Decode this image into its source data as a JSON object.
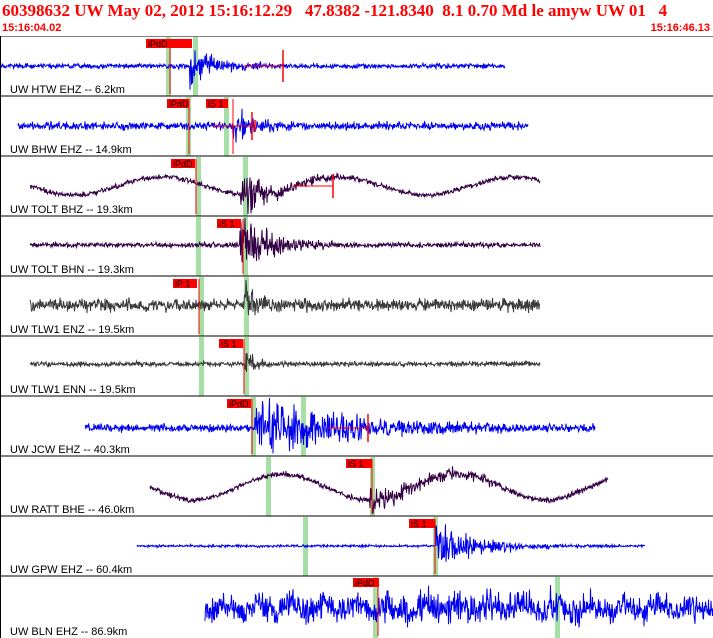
{
  "header": {
    "title": "60398632 UW May 02, 2012 15:16:12.29   47.8382 -121.8340  8.1 0.70 Md le amyw UW 01   4",
    "start_time": "15:16:04.02",
    "end_time": "15:16:46.13"
  },
  "colors": {
    "title": "#ff0000",
    "pick_flag": "#ff0000",
    "window": "#a6dfa6",
    "trace_blue": "#0000ee",
    "trace_purple": "#330044",
    "trace_dark": "#3a3a3a",
    "panel_border": "#000000"
  },
  "panels": [
    {
      "label": "UW HTW EHZ -- 6.2km",
      "color": "#0000ee",
      "picks": [
        "iPdD",
        "eS 2"
      ]
    },
    {
      "label": "UW BHW EHZ -- 14.9km",
      "color": "#0000ee",
      "picks": [
        "iPdD",
        "iS 1"
      ]
    },
    {
      "label": "UW TOLT BHZ -- 19.3km",
      "color": "#330044",
      "picks": [
        "iPdD"
      ]
    },
    {
      "label": "UW TOLT BHN -- 19.3km",
      "color": "#330044",
      "picks": [
        "iS 1"
      ]
    },
    {
      "label": "UW TLW1 ENZ -- 19.5km",
      "color": "#3a3a3a",
      "picks": [
        "iP 1"
      ]
    },
    {
      "label": "UW TLW1 ENN -- 19.5km",
      "color": "#3a3a3a",
      "picks": [
        "iS 1"
      ]
    },
    {
      "label": "UW JCW EHZ -- 40.3km",
      "color": "#0000ee",
      "picks": [
        "iPdD"
      ]
    },
    {
      "label": "UW RATT BHE -- 46.0km",
      "color": "#330044",
      "picks": [
        "iS 1"
      ]
    },
    {
      "label": "UW GPW EHZ -- 60.4km",
      "color": "#0000ee",
      "picks": [
        "iS 1"
      ]
    },
    {
      "label": "UW BLN EHZ -- 86.9km",
      "color": "#0000ee",
      "picks": [
        "iPdD"
      ]
    }
  ]
}
